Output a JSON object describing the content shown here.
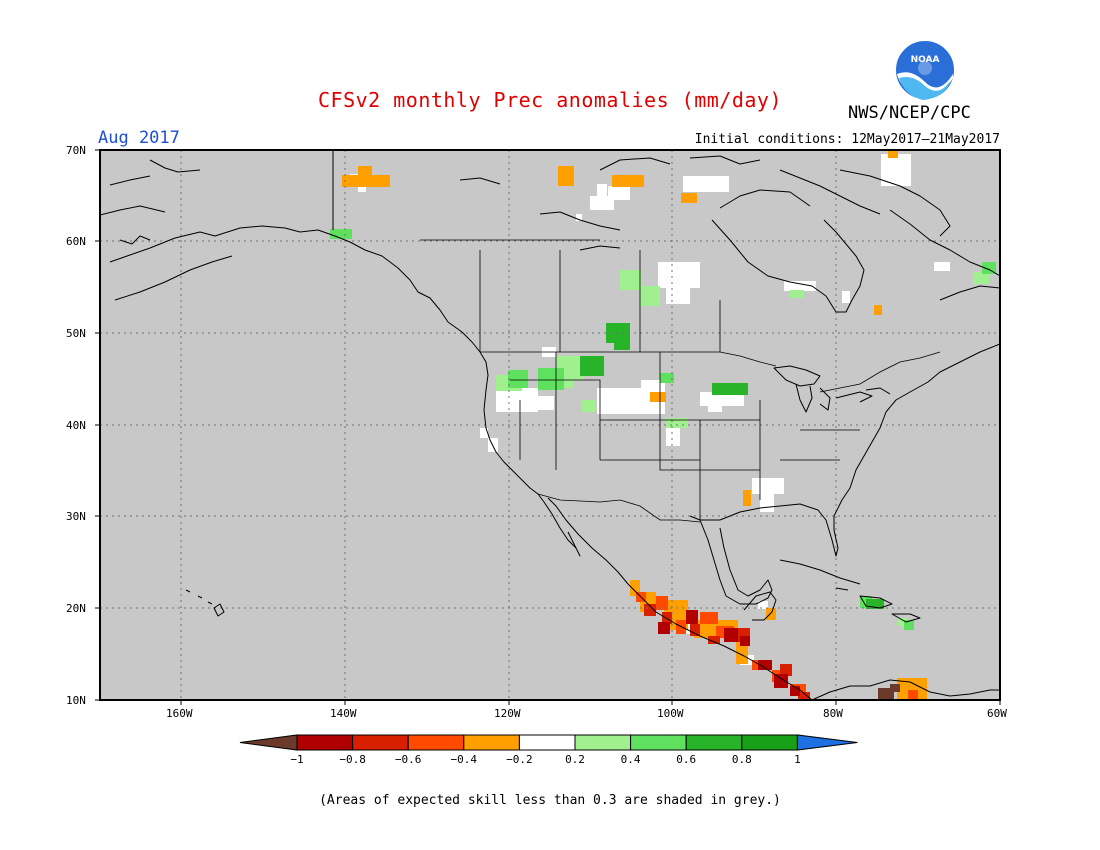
{
  "title": "CFSv2 monthly Prec anomalies (mm/day)",
  "month": "Aug 2017",
  "agency": "NWS/NCEP/CPC",
  "initial_conditions": "Initial conditions: 12May2017–21May2017",
  "logo": {
    "icon": "noaa-logo",
    "text": "NOAA"
  },
  "lat_labels": [
    "70N",
    "60N",
    "50N",
    "40N",
    "30N",
    "20N",
    "10N"
  ],
  "lon_labels": [
    "160W",
    "140W",
    "120W",
    "100W",
    "80W",
    "60W"
  ],
  "colorbar": {
    "tick_labels": [
      "−1",
      "−0.8",
      "−0.6",
      "−0.4",
      "−0.2",
      "0.2",
      "0.4",
      "0.6",
      "0.8",
      "1"
    ],
    "colors": [
      "#6b3a2a",
      "#b00000",
      "#d82000",
      "#ff4a00",
      "#ff9f00",
      "#ffffff",
      "#a0f090",
      "#5fe05f",
      "#28b428",
      "#18a018",
      "#1e6fe0"
    ]
  },
  "footnote": "(Areas of expected skill less than 0.3 are shaded in grey.)",
  "colors": {
    "skill_grey": "#c8c8c8",
    "title_red": "#e00000",
    "month_blue": "#1f4fd6"
  }
}
